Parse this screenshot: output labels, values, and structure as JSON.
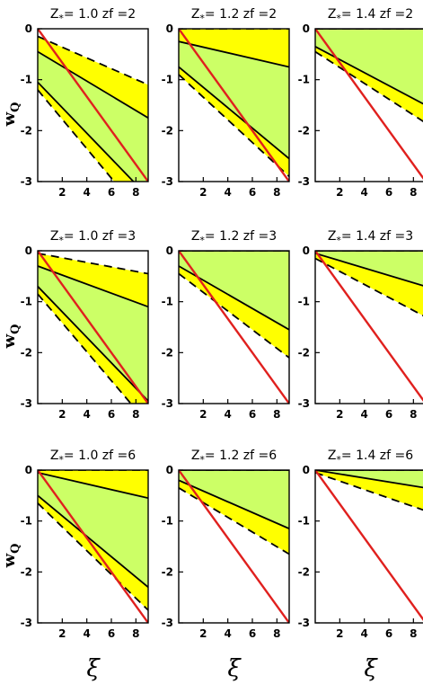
{
  "figure": {
    "ylabel": "w",
    "ylabel_sub": "Q",
    "xlabel": "ξ"
  },
  "colors": {
    "outer_band": "#ffff00",
    "inner_band": "#ccff66",
    "model_line": "#e0201e",
    "contour_line": "#000000"
  },
  "chart_data": [
    {
      "type": "area",
      "title_z": "Z",
      "title_sub": "*",
      "title_rest": "= 1.0 zf =2",
      "xlim": [
        0,
        9
      ],
      "ylim": [
        -3,
        0
      ],
      "xticks": [
        2,
        4,
        6,
        8
      ],
      "yticks": [
        0,
        -1,
        -2,
        -3
      ],
      "x": [
        0,
        9
      ],
      "outer_upper": [
        -0.15,
        -1.1
      ],
      "inner_upper": [
        -0.45,
        -1.75
      ],
      "inner_lower": [
        -1.05,
        -3.3
      ],
      "outer_lower": [
        -1.2,
        -3.8
      ],
      "line_x": [
        0,
        9
      ],
      "line_y": [
        0,
        -3
      ]
    },
    {
      "type": "area",
      "title_z": "Z",
      "title_sub": "*",
      "title_rest": "= 1.2 zf =2",
      "xlim": [
        0,
        9
      ],
      "ylim": [
        -3,
        0
      ],
      "xticks": [
        2,
        4,
        6,
        8
      ],
      "yticks": [
        0,
        -1,
        -2,
        -3
      ],
      "x": [
        0,
        9
      ],
      "outer_upper": [
        0,
        0
      ],
      "inner_upper": [
        -0.25,
        -0.75
      ],
      "inner_lower": [
        -0.75,
        -2.55
      ],
      "outer_lower": [
        -0.9,
        -2.9
      ],
      "line_x": [
        0,
        9
      ],
      "line_y": [
        0,
        -3
      ]
    },
    {
      "type": "area",
      "title_z": "Z",
      "title_sub": "*",
      "title_rest": "= 1.4 zf =2",
      "xlim": [
        0,
        9
      ],
      "ylim": [
        -3,
        0
      ],
      "xticks": [
        2,
        4,
        6,
        8
      ],
      "yticks": [
        0,
        -1,
        -2,
        -3
      ],
      "x": [
        0,
        9
      ],
      "outer_upper": [
        0,
        0
      ],
      "inner_upper": [
        0,
        0
      ],
      "inner_lower": [
        -0.35,
        -1.5
      ],
      "outer_lower": [
        -0.45,
        -1.85
      ],
      "line_x": [
        0,
        9
      ],
      "line_y": [
        0,
        -3
      ]
    },
    {
      "type": "area",
      "title_z": "Z",
      "title_sub": "*",
      "title_rest": "= 1.0 zf =3",
      "xlim": [
        0,
        9
      ],
      "ylim": [
        -3,
        0
      ],
      "xticks": [
        2,
        4,
        6,
        8
      ],
      "yticks": [
        0,
        -1,
        -2,
        -3
      ],
      "x": [
        0,
        9
      ],
      "outer_upper": [
        -0.05,
        -0.45
      ],
      "inner_upper": [
        -0.3,
        -1.1
      ],
      "inner_lower": [
        -0.7,
        -2.95
      ],
      "outer_lower": [
        -0.85,
        -3.4
      ],
      "line_x": [
        0,
        9
      ],
      "line_y": [
        0,
        -3
      ]
    },
    {
      "type": "area",
      "title_z": "Z",
      "title_sub": "*",
      "title_rest": "= 1.2 zf =3",
      "xlim": [
        0,
        9
      ],
      "ylim": [
        -3,
        0
      ],
      "xticks": [
        2,
        4,
        6,
        8
      ],
      "yticks": [
        0,
        -1,
        -2,
        -3
      ],
      "x": [
        0,
        9
      ],
      "outer_upper": [
        0,
        0
      ],
      "inner_upper": [
        0,
        0
      ],
      "inner_lower": [
        -0.3,
        -1.55
      ],
      "outer_lower": [
        -0.45,
        -2.1
      ],
      "line_x": [
        0,
        9
      ],
      "line_y": [
        0,
        -3
      ]
    },
    {
      "type": "area",
      "title_z": "Z",
      "title_sub": "*",
      "title_rest": "= 1.4 zf =3",
      "xlim": [
        0,
        9
      ],
      "ylim": [
        -3,
        0
      ],
      "xticks": [
        2,
        4,
        6,
        8
      ],
      "yticks": [
        0,
        -1,
        -2,
        -3
      ],
      "x": [
        0,
        9
      ],
      "outer_upper": [
        0,
        0
      ],
      "inner_upper": [
        0,
        0
      ],
      "inner_lower": [
        -0.05,
        -0.7
      ],
      "outer_lower": [
        -0.15,
        -1.3
      ],
      "line_x": [
        0,
        9
      ],
      "line_y": [
        0,
        -3
      ]
    },
    {
      "type": "area",
      "title_z": "Z",
      "title_sub": "*",
      "title_rest": "= 1.0 zf =6",
      "xlim": [
        0,
        9
      ],
      "ylim": [
        -3,
        0
      ],
      "xticks": [
        2,
        4,
        6,
        8
      ],
      "yticks": [
        0,
        -1,
        -2,
        -3
      ],
      "x": [
        0,
        9
      ],
      "outer_upper": [
        0,
        0
      ],
      "inner_upper": [
        -0.05,
        -0.55
      ],
      "inner_lower": [
        -0.5,
        -2.3
      ],
      "outer_lower": [
        -0.65,
        -2.75
      ],
      "line_x": [
        0,
        9
      ],
      "line_y": [
        0,
        -3
      ]
    },
    {
      "type": "area",
      "title_z": "Z",
      "title_sub": "*",
      "title_rest": "= 1.2 zf =6",
      "xlim": [
        0,
        9
      ],
      "ylim": [
        -3,
        0
      ],
      "xticks": [
        2,
        4,
        6,
        8
      ],
      "yticks": [
        0,
        -1,
        -2,
        -3
      ],
      "x": [
        0,
        9
      ],
      "outer_upper": [
        0,
        0
      ],
      "inner_upper": [
        0,
        0
      ],
      "inner_lower": [
        -0.2,
        -1.15
      ],
      "outer_lower": [
        -0.35,
        -1.65
      ],
      "line_x": [
        0,
        9
      ],
      "line_y": [
        0,
        -3
      ]
    },
    {
      "type": "area",
      "title_z": "Z",
      "title_sub": "*",
      "title_rest": "= 1.4 zf =6",
      "xlim": [
        0,
        9
      ],
      "ylim": [
        -3,
        0
      ],
      "xticks": [
        2,
        4,
        6,
        8
      ],
      "yticks": [
        0,
        -1,
        -2,
        -3
      ],
      "x": [
        0,
        9
      ],
      "outer_upper": [
        0,
        0
      ],
      "inner_upper": [
        0,
        0
      ],
      "inner_lower": [
        0,
        -0.35
      ],
      "outer_lower": [
        -0.05,
        -0.8
      ],
      "line_x": [
        0,
        9
      ],
      "line_y": [
        0,
        -3
      ]
    }
  ]
}
